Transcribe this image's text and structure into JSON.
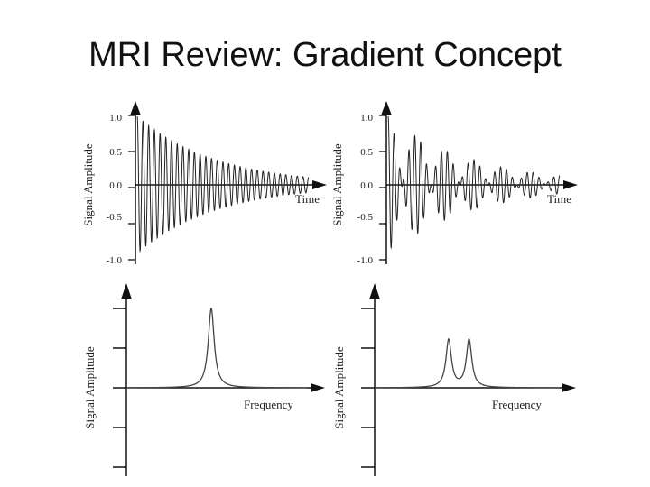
{
  "slide": {
    "title": "MRI Review: Gradient Concept"
  },
  "chart_data": [
    {
      "type": "line",
      "title": "",
      "xlabel": "Time",
      "ylabel": "Signal Amplitude",
      "ylim": [
        -1.0,
        1.0
      ],
      "yticks": [
        "1.0",
        "0.5",
        "0.0",
        "-0.5",
        "-1.0"
      ],
      "grid": false,
      "series": [
        {
          "frequency_cycles": 30,
          "decay": 2.2,
          "amplitude": 0.95
        }
      ]
    },
    {
      "type": "line",
      "title": "",
      "xlabel": "Time",
      "ylabel": "Signal Amplitude",
      "ylim": [
        -1.0,
        1.0
      ],
      "yticks": [
        "1.0",
        "0.5",
        "0.0",
        "-0.5",
        "-1.0"
      ],
      "grid": false,
      "series": [
        {
          "components": [
            {
              "frequency_cycles": 26
            },
            {
              "frequency_cycles": 32
            }
          ],
          "decay": 2.0,
          "amplitude": 0.95
        }
      ]
    },
    {
      "type": "line",
      "title": "",
      "xlabel": "Frequency",
      "ylabel": "Signal Amplitude",
      "grid": false,
      "series": [
        {
          "peaks": [
            0.47
          ],
          "height": 0.8,
          "width": 0.02
        }
      ]
    },
    {
      "type": "line",
      "title": "",
      "xlabel": "Frequency",
      "ylabel": "Signal Amplitude",
      "grid": false,
      "series": [
        {
          "peaks": [
            0.4,
            0.51
          ],
          "height": 0.48,
          "width": 0.018
        }
      ]
    }
  ]
}
